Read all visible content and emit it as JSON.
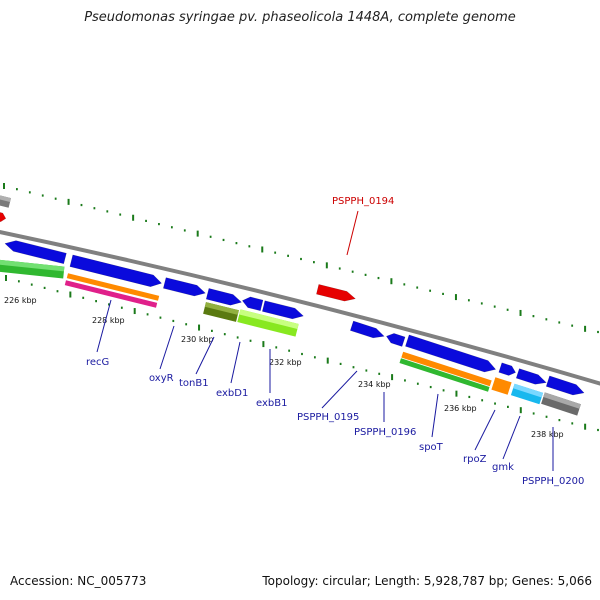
{
  "title": "Pseudomonas syringae pv. phaseolicola 1448A, complete genome",
  "footer": {
    "accession": "Accession: NC_005773",
    "stats": "Topology: circular; Length: 5,928,787 bp; Genes: 5,066"
  },
  "colors": {
    "backbone": "#808080",
    "tick": "#1a7a1a",
    "gene_blue": "#0a0adc",
    "gene_red": "#e60000",
    "label_blue": "#1a1aa0",
    "label_red": "#cc0000"
  },
  "kbp_labels": [
    "226 kbp",
    "228 kbp",
    "230 kbp",
    "232 kbp",
    "234 kbp",
    "236 kbp",
    "238 kbp"
  ],
  "gene_labels": [
    {
      "text": "PSPPH_0194",
      "color": "red"
    },
    {
      "text": "recG",
      "color": "blue"
    },
    {
      "text": "oxyR",
      "color": "blue"
    },
    {
      "text": "tonB1",
      "color": "blue"
    },
    {
      "text": "exbD1",
      "color": "blue"
    },
    {
      "text": "exbB1",
      "color": "blue"
    },
    {
      "text": "PSPPH_0195",
      "color": "blue"
    },
    {
      "text": "PSPPH_0196",
      "color": "blue"
    },
    {
      "text": "spoT",
      "color": "blue"
    },
    {
      "text": "rpoZ",
      "color": "blue"
    },
    {
      "text": "gmk",
      "color": "blue"
    },
    {
      "text": "PSPPH_0200",
      "color": "blue"
    }
  ]
}
